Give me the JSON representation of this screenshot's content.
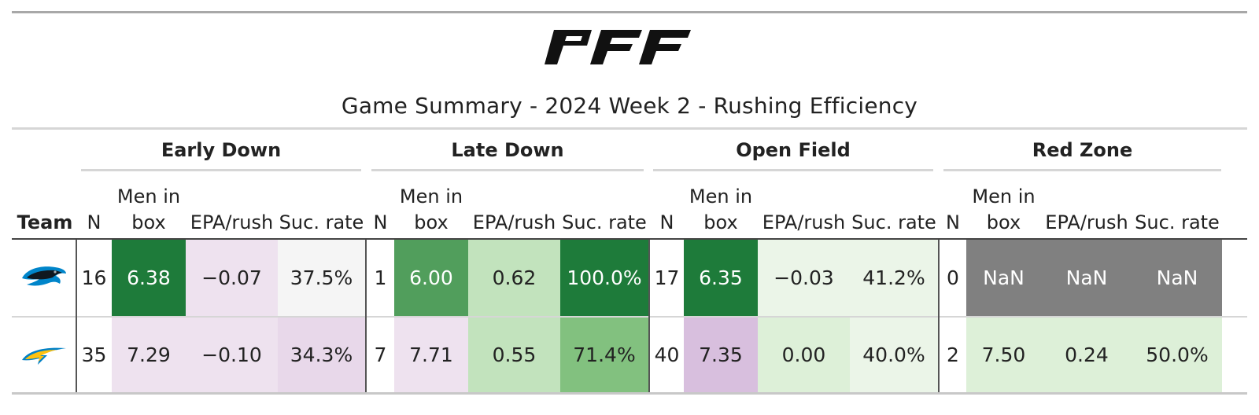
{
  "brand": {
    "logo_text": "PFF"
  },
  "title": "Game Summary - 2024 Week 2 - Rushing Efficiency",
  "groups": [
    {
      "label": "Early Down"
    },
    {
      "label": "Late Down"
    },
    {
      "label": "Open Field"
    },
    {
      "label": "Red Zone"
    }
  ],
  "columns": {
    "team": "Team",
    "n": "N",
    "men_line1": "Men in",
    "men_line2": "box",
    "epa": "EPA/rush",
    "suc": "Suc. rate"
  },
  "rows": [
    {
      "team_icon": "panthers-logo-icon",
      "team_color": "#0085CA",
      "groups": [
        {
          "n": "16",
          "men": "6.38",
          "epa": "−0.07",
          "suc": "37.5%"
        },
        {
          "n": "1",
          "men": "6.00",
          "epa": "0.62",
          "suc": "100.0%"
        },
        {
          "n": "17",
          "men": "6.35",
          "epa": "−0.03",
          "suc": "41.2%"
        },
        {
          "n": "0",
          "men": "NaN",
          "epa": "NaN",
          "suc": "NaN"
        }
      ]
    },
    {
      "team_icon": "chargers-logo-icon",
      "team_color": "#0080C6",
      "groups": [
        {
          "n": "35",
          "men": "7.29",
          "epa": "−0.10",
          "suc": "34.3%"
        },
        {
          "n": "7",
          "men": "7.71",
          "epa": "0.55",
          "suc": "71.4%"
        },
        {
          "n": "40",
          "men": "7.35",
          "epa": "0.00",
          "suc": "40.0%"
        },
        {
          "n": "2",
          "men": "7.50",
          "epa": "0.24",
          "suc": "50.0%"
        }
      ]
    }
  ],
  "colors": {
    "dark_green": "#1e7b3a",
    "mid_green": "#519e5c",
    "green": "#82c17f",
    "light_green": "#c2e3bd",
    "pale_green": "#ddf0d8",
    "faint_green": "#ebf5e8",
    "neutral": "#f5f5f5",
    "pale_purple": "#eee2ef",
    "light_purple": "#e8d8ea",
    "purple": "#d8bfde",
    "nan_gray": "#808080"
  }
}
